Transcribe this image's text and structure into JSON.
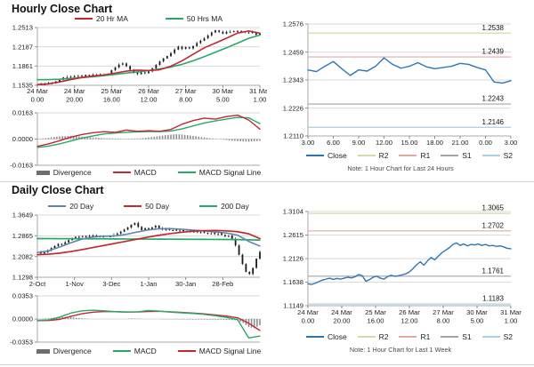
{
  "panels": {
    "hourly": {
      "title": "Hourly Close Chart"
    },
    "daily": {
      "title": "Daily Close Chart"
    }
  },
  "legends": {
    "hourly_main": [
      {
        "label": "20 Hr MA",
        "color": "#c4272e",
        "marker": "line"
      },
      {
        "label": "50 Hrs MA",
        "color": "#27a968",
        "marker": "line"
      }
    ],
    "hourly_macd": [
      {
        "label": "Divergence",
        "color": "#6e6e6e",
        "marker": "bar"
      },
      {
        "label": "MACD",
        "color": "#c4272e",
        "marker": "line"
      },
      {
        "label": "MACD Signal Line",
        "color": "#27a968",
        "marker": "line"
      }
    ],
    "daily_main": [
      {
        "label": "20 Day",
        "color": "#5e87b0",
        "marker": "line"
      },
      {
        "label": "50 Day",
        "color": "#c4272e",
        "marker": "line"
      },
      {
        "label": "200 Day",
        "color": "#27a968",
        "marker": "line"
      }
    ],
    "daily_macd": [
      {
        "label": "Divergence",
        "color": "#6e6e6e",
        "marker": "bar"
      },
      {
        "label": "MACD",
        "color": "#27a968",
        "marker": "line"
      },
      {
        "label": "MACD Signal Line",
        "color": "#c4272e",
        "marker": "line"
      }
    ],
    "pivot": [
      {
        "label": "Close",
        "color": "#2e75b6",
        "marker": "line"
      },
      {
        "label": "R2",
        "color": "#d6d8a8",
        "marker": "line"
      },
      {
        "label": "R1",
        "color": "#e4aaa2",
        "marker": "line"
      },
      {
        "label": "S1",
        "color": "#a3a3a3",
        "marker": "line"
      },
      {
        "label": "S2",
        "color": "#abd1e0",
        "marker": "line"
      }
    ]
  },
  "chart_data": [
    {
      "id": "hourly-price",
      "type": "candlestick",
      "title": "Hourly Close Chart",
      "ylim": [
        1.1535,
        1.2513
      ],
      "yticks": [
        "1.2513",
        "1.2187",
        "1.1861",
        "1.1535"
      ],
      "xticks": [
        [
          "24 Mar",
          "0.00"
        ],
        [
          "24 Mar",
          "20.00"
        ],
        [
          "25 Mar",
          "16.00"
        ],
        [
          "26 Mar",
          "12.00"
        ],
        [
          "27 Mar",
          "8.00"
        ],
        [
          "30 Mar",
          "5.00"
        ],
        [
          "31 Mar",
          "1.00"
        ]
      ],
      "series": [
        {
          "name": "Close candles",
          "type": "candle",
          "color": "#1a1a1a",
          "wick": 0.0018,
          "values": [
            1.156,
            1.154,
            1.1558,
            1.1575,
            1.1568,
            1.16,
            1.1635,
            1.1668,
            1.168,
            1.1672,
            1.169,
            1.17,
            1.1688,
            1.171,
            1.1698,
            1.1715,
            1.1705,
            1.1722,
            1.1712,
            1.1728,
            1.179,
            1.184,
            1.1885,
            1.1905,
            1.186,
            1.18,
            1.175,
            1.1725,
            1.1755,
            1.174,
            1.177,
            1.182,
            1.188,
            1.194,
            1.199,
            1.203,
            1.208,
            1.214,
            1.219,
            1.215,
            1.218,
            1.216,
            1.22,
            1.225,
            1.229,
            1.233,
            1.238,
            1.243,
            1.2465,
            1.244,
            1.241,
            1.244,
            1.245,
            1.244,
            1.2455,
            1.2445,
            1.243,
            1.244,
            1.242,
            1.239,
            1.241
          ]
        },
        {
          "name": "50 Hrs MA",
          "type": "line",
          "color": "#27a968",
          "width": 1.6,
          "values": [
            1.163,
            1.1632,
            1.1638,
            1.165,
            1.1665,
            1.168,
            1.17,
            1.172,
            1.1742,
            1.1762,
            1.1785,
            1.1812,
            1.1845,
            1.189,
            1.195,
            1.202,
            1.2095,
            1.217,
            1.225,
            1.233,
            1.2385
          ]
        },
        {
          "name": "20 Hr MA",
          "type": "line",
          "color": "#c4272e",
          "width": 1.6,
          "values": [
            1.1548,
            1.156,
            1.1592,
            1.1632,
            1.1668,
            1.1692,
            1.171,
            1.1742,
            1.1775,
            1.1792,
            1.1785,
            1.1798,
            1.1858,
            1.195,
            1.206,
            1.217,
            1.225,
            1.2332,
            1.242,
            1.2455,
            1.2418
          ]
        }
      ]
    },
    {
      "id": "hourly-macd",
      "type": "macd",
      "ylim": [
        -0.0163,
        0.0163
      ],
      "yticks": [
        "0.0163",
        "0.0000",
        "-0.0163"
      ],
      "series": [
        {
          "name": "Divergence",
          "type": "bar",
          "color": "#8c8c8c",
          "values": [
            0.0002,
            0.0004,
            0.0008,
            0.0013,
            0.0017,
            0.0019,
            0.002,
            0.0018,
            0.0015,
            0.0012,
            0.001,
            0.0008,
            0.0006,
            0.0005,
            0.0004,
            0.0003,
            0.0002,
            0.0003,
            0.0004,
            0.0006,
            0.001,
            0.0014,
            0.0019,
            0.0024,
            0.0028,
            0.003,
            0.0028,
            0.0024,
            0.0019,
            0.0015,
            0.001,
            0.0006,
            0.0002,
            -0.0002,
            -0.0006,
            -0.001,
            -0.0013,
            -0.0015,
            -0.0016,
            -0.0014,
            -0.001
          ]
        },
        {
          "name": "MACD Signal Line",
          "type": "line",
          "color": "#27a968",
          "width": 1.4,
          "values": [
            -0.0052,
            -0.0044,
            -0.003,
            -0.0012,
            0.0006,
            0.002,
            0.0032,
            0.0038,
            0.0042,
            0.0045,
            0.0047,
            0.0047,
            0.005,
            0.0063,
            0.0082,
            0.01,
            0.0113,
            0.0124,
            0.0135,
            0.0132,
            0.0096
          ]
        },
        {
          "name": "MACD",
          "type": "line",
          "color": "#c4272e",
          "width": 1.4,
          "values": [
            -0.0045,
            -0.003,
            -0.001,
            0.0012,
            0.0028,
            0.004,
            0.0046,
            0.0042,
            0.0056,
            0.0048,
            0.0052,
            0.0048,
            0.006,
            0.0092,
            0.0115,
            0.013,
            0.0124,
            0.014,
            0.0149,
            0.0118,
            0.0062
          ]
        }
      ]
    },
    {
      "id": "pivot-24h",
      "type": "line",
      "note": "Note: 1 Hour Chart for Last 24 Hours",
      "ylim": [
        1.211,
        1.2576
      ],
      "yticks": [
        "1.2576",
        "1.2459",
        "1.2343",
        "1.2226",
        "1.2110"
      ],
      "xticks": [
        [
          "3.00"
        ],
        [
          "6.00"
        ],
        [
          "9.00"
        ],
        [
          "12.00"
        ],
        [
          "15.00"
        ],
        [
          "18.00"
        ],
        [
          "21.00"
        ],
        [
          "0.00"
        ],
        [
          "3.00"
        ]
      ],
      "series": [
        {
          "name": "R2",
          "type": "hline",
          "color": "#d6d8a8",
          "value": 1.2538,
          "label": "1.2538"
        },
        {
          "name": "R1",
          "type": "hline",
          "color": "#e4aaa2",
          "value": 1.2439,
          "label": "1.2439"
        },
        {
          "name": "S1",
          "type": "hline",
          "color": "#a3a3a3",
          "value": 1.2243,
          "label": "1.2243"
        },
        {
          "name": "S2",
          "type": "hline",
          "color": "#abd1e0",
          "value": 1.2146,
          "label": "1.2146"
        },
        {
          "name": "Close",
          "type": "line",
          "color": "#2e75b6",
          "width": 1.4,
          "values": [
            1.2385,
            1.2378,
            1.24,
            1.242,
            1.239,
            1.2362,
            1.2385,
            1.238,
            1.24,
            1.2435,
            1.2408,
            1.2392,
            1.24,
            1.2415,
            1.2398,
            1.239,
            1.2395,
            1.24,
            1.2412,
            1.2408,
            1.2395,
            1.2385,
            1.2335,
            1.233,
            1.234
          ]
        }
      ]
    },
    {
      "id": "daily-price",
      "type": "candlestick",
      "title": "Daily Close Chart",
      "ylim": [
        1.1298,
        1.3649
      ],
      "yticks": [
        "1.3649",
        "1.2865",
        "1.2082",
        "1.1298"
      ],
      "xticks": [
        [
          "2-Oct"
        ],
        [
          "1-Nov"
        ],
        [
          "3-Dec"
        ],
        [
          "1-Jan"
        ],
        [
          "30-Jan"
        ],
        [
          "28-Feb"
        ]
      ],
      "xpos": [
        0,
        0.1667,
        0.3333,
        0.5,
        0.6667,
        0.8333
      ],
      "series": [
        {
          "name": "Close candles",
          "type": "candle",
          "color": "#1a1a1a",
          "wick": 0.004,
          "values": [
            1.225,
            1.22,
            1.224,
            1.231,
            1.24,
            1.248,
            1.256,
            1.254,
            1.262,
            1.27,
            1.276,
            1.282,
            1.285,
            1.282,
            1.286,
            1.284,
            1.288,
            1.285,
            1.282,
            1.286,
            1.284,
            1.287,
            1.29,
            1.295,
            1.302,
            1.31,
            1.318,
            1.328,
            1.335,
            1.32,
            1.308,
            1.315,
            1.31,
            1.318,
            1.325,
            1.315,
            1.31,
            1.313,
            1.308,
            1.311,
            1.306,
            1.309,
            1.304,
            1.306,
            1.302,
            1.305,
            1.3,
            1.303,
            1.298,
            1.295,
            1.298,
            1.293,
            1.296,
            1.29,
            1.285,
            1.288,
            1.275,
            1.25,
            1.215,
            1.18,
            1.15,
            1.142,
            1.165,
            1.2,
            1.225
          ]
        },
        {
          "name": "200 Day",
          "type": "line",
          "color": "#27a968",
          "width": 1.7,
          "values": [
            1.276,
            1.2758,
            1.2756,
            1.2754,
            1.2752,
            1.275,
            1.2748,
            1.2746,
            1.2744,
            1.2742,
            1.274,
            1.2738,
            1.2736,
            1.2734,
            1.2732,
            1.273,
            1.2728,
            1.2726,
            1.2722,
            1.2714,
            1.2705
          ]
        },
        {
          "name": "20 Day",
          "type": "line",
          "color": "#5e87b0",
          "width": 1.6,
          "values": [
            1.223,
            1.23,
            1.244,
            1.26,
            1.274,
            1.282,
            1.285,
            1.286,
            1.292,
            1.301,
            1.309,
            1.313,
            1.3135,
            1.311,
            1.308,
            1.305,
            1.301,
            1.297,
            1.289,
            1.265,
            1.248
          ]
        },
        {
          "name": "50 Day",
          "type": "line",
          "color": "#c4272e",
          "width": 1.7,
          "values": [
            1.215,
            1.217,
            1.221,
            1.227,
            1.234,
            1.242,
            1.25,
            1.258,
            1.266,
            1.274,
            1.282,
            1.289,
            1.295,
            1.3,
            1.304,
            1.306,
            1.3065,
            1.305,
            1.302,
            1.294,
            1.276
          ]
        }
      ]
    },
    {
      "id": "daily-macd",
      "type": "macd",
      "ylim": [
        -0.0353,
        0.0353
      ],
      "yticks": [
        "0.0353",
        "0.0000",
        "-0.0353"
      ],
      "series": [
        {
          "name": "Divergence",
          "type": "bar",
          "color": "#8c8c8c",
          "values": [
            -0.0002,
            0.0005,
            0.0012,
            0.0022,
            0.003,
            0.0032,
            0.0028,
            0.002,
            0.0012,
            0.0006,
            0.0002,
            0.0,
            -0.0002,
            -0.0003,
            -0.0002,
            0.0,
            0.0004,
            0.0008,
            0.0006,
            0.0003,
            0.0,
            -0.0002,
            -0.0004,
            -0.0005,
            -0.0006,
            -0.0006,
            -0.0007,
            -0.0008,
            -0.0008,
            -0.0009,
            -0.001,
            -0.001,
            -0.0011,
            -0.0012,
            -0.0014,
            -0.0016,
            -0.002,
            -0.006,
            -0.0125,
            -0.014,
            -0.0095
          ]
        },
        {
          "name": "MACD Signal Line",
          "type": "line",
          "color": "#c4272e",
          "width": 1.4,
          "values": [
            -0.0025,
            -0.0022,
            -0.0005,
            0.004,
            0.008,
            0.0105,
            0.0115,
            0.0112,
            0.0108,
            0.0108,
            0.0115,
            0.0118,
            0.011,
            0.01,
            0.009,
            0.0078,
            0.0062,
            0.0045,
            0.0018,
            -0.0065,
            -0.0175
          ]
        },
        {
          "name": "MACD",
          "type": "line",
          "color": "#27a968",
          "width": 1.4,
          "values": [
            -0.002,
            -0.0015,
            0.003,
            0.009,
            0.0125,
            0.0135,
            0.0125,
            0.0112,
            0.0105,
            0.011,
            0.013,
            0.012,
            0.0105,
            0.0095,
            0.0085,
            0.007,
            0.005,
            0.0025,
            -0.001,
            -0.029,
            -0.026
          ]
        }
      ]
    },
    {
      "id": "pivot-week",
      "type": "line",
      "note": "Note: 1 Hour Chart for Last 1 Week",
      "ylim": [
        1.1149,
        1.3104
      ],
      "yticks": [
        "1.3104",
        "1.2615",
        "1.2126",
        "1.1638",
        "1.1149"
      ],
      "xticks": [
        [
          "24 Mar",
          "0.00"
        ],
        [
          "24 Mar",
          "20.00"
        ],
        [
          "25 Mar",
          "16.00"
        ],
        [
          "26 Mar",
          "12.00"
        ],
        [
          "27 Mar",
          "8.00"
        ],
        [
          "30 Mar",
          "5.00"
        ],
        [
          "31 Mar",
          "1.00"
        ]
      ],
      "series": [
        {
          "name": "R2",
          "type": "hline",
          "color": "#d6d8a8",
          "value": 1.3065,
          "label": "1.3065"
        },
        {
          "name": "R1",
          "type": "hline",
          "color": "#e4aaa2",
          "value": 1.2702,
          "label": "1.2702"
        },
        {
          "name": "S1",
          "type": "hline",
          "color": "#a3a3a3",
          "value": 1.1761,
          "label": "1.1761"
        },
        {
          "name": "S2",
          "type": "hline",
          "color": "#abd1e0",
          "value": 1.1183,
          "label": "1.1183"
        },
        {
          "name": "Close",
          "type": "line",
          "color": "#2e75b6",
          "width": 1.4,
          "values": [
            1.1605,
            1.159,
            1.1615,
            1.165,
            1.168,
            1.17,
            1.172,
            1.1695,
            1.1715,
            1.17,
            1.172,
            1.174,
            1.1725,
            1.175,
            1.1795,
            1.177,
            1.1655,
            1.169,
            1.174,
            1.176,
            1.172,
            1.17,
            1.1755,
            1.178,
            1.176,
            1.177,
            1.179,
            1.181,
            1.185,
            1.192,
            1.2,
            1.206,
            1.199,
            1.208,
            1.215,
            1.21,
            1.218,
            1.225,
            1.23,
            1.235,
            1.242,
            1.245,
            1.24,
            1.243,
            1.239,
            1.242,
            1.241,
            1.243,
            1.24,
            1.242,
            1.239,
            1.24,
            1.238,
            1.239,
            1.237,
            1.234,
            1.233
          ]
        }
      ]
    }
  ]
}
